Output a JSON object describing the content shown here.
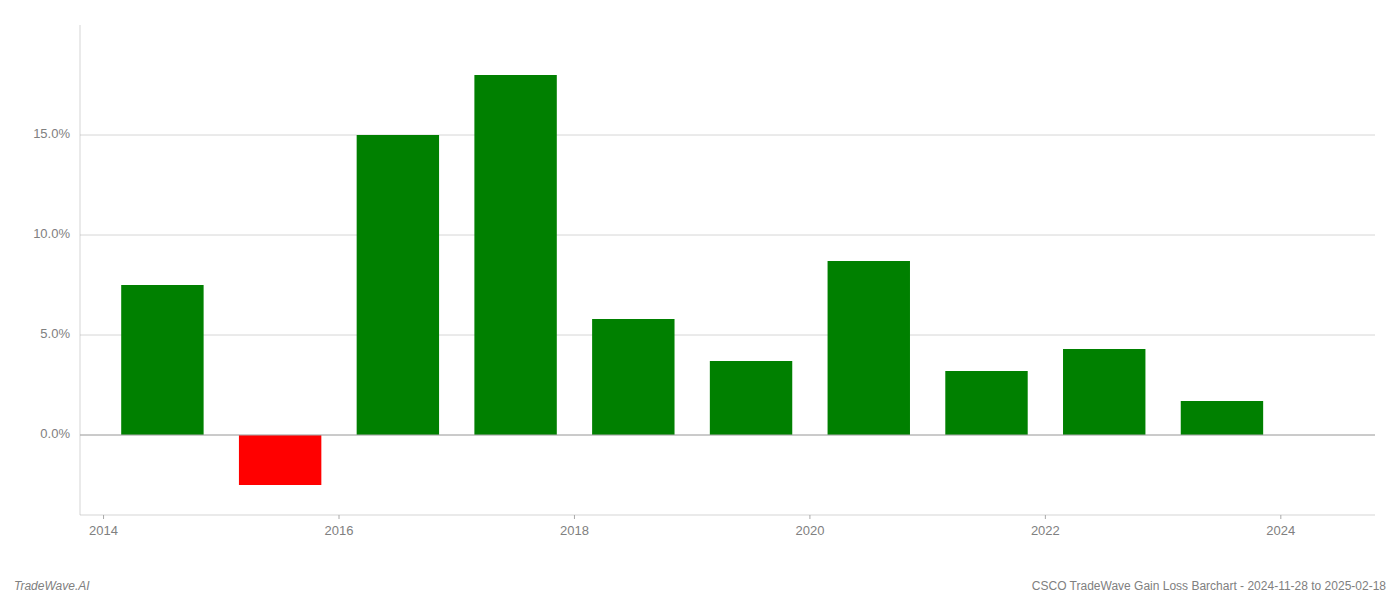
{
  "chart_data": {
    "type": "bar",
    "x": [
      2014.5,
      2015.5,
      2016.5,
      2017.5,
      2018.5,
      2019.5,
      2020.5,
      2021.5,
      2022.5,
      2023.5
    ],
    "values": [
      7.5,
      -2.5,
      15.0,
      18.0,
      5.8,
      3.7,
      8.7,
      3.2,
      4.3,
      1.7
    ],
    "colors": [
      "#008000",
      "#ff0000",
      "#008000",
      "#008000",
      "#008000",
      "#008000",
      "#008000",
      "#008000",
      "#008000",
      "#008000"
    ],
    "xlim": [
      2013.8,
      2024.8
    ],
    "xticks": [
      2014,
      2016,
      2018,
      2020,
      2022,
      2024
    ],
    "ylim": [
      -4.0,
      20.5
    ],
    "yticks": [
      {
        "value": 0.0,
        "label": "0.0%"
      },
      {
        "value": 5.0,
        "label": "5.0%"
      },
      {
        "value": 10.0,
        "label": "10.0%"
      },
      {
        "value": 15.0,
        "label": "15.0%"
      }
    ],
    "grid": true,
    "annotations": [
      "TradeWave.AI",
      "CSCO TradeWave Gain Loss Barchart - 2024-11-28 to 2025-02-18"
    ]
  }
}
